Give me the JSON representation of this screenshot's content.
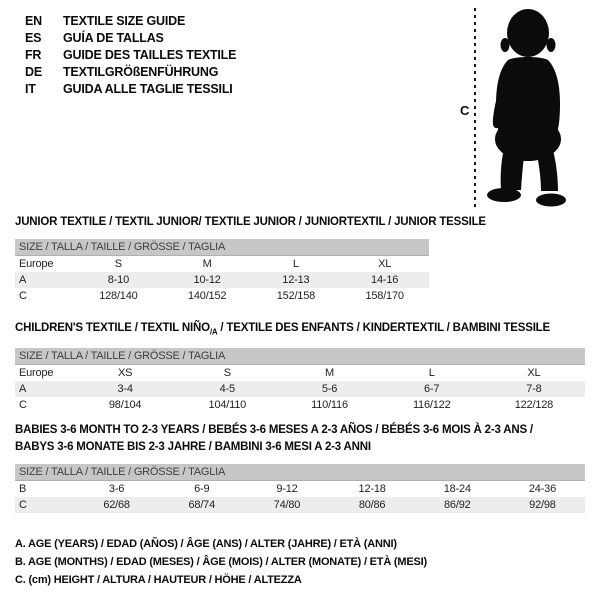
{
  "colors": {
    "header_bar": "#c7c7c7",
    "header_bar_text": "#3f3f3f",
    "alt_row": "#ededed",
    "silhouette": "#0b0b0b"
  },
  "languages": [
    {
      "code": "EN",
      "label": "TEXTILE SIZE GUIDE"
    },
    {
      "code": "ES",
      "label": "GUÍA DE TALLAS"
    },
    {
      "code": "FR",
      "label": "GUIDE DES TAILLES TEXTILE"
    },
    {
      "code": "DE",
      "label": "TEXTILGRÖßENFÜHRUNG"
    },
    {
      "code": "IT",
      "label": "GUIDA ALLE TAGLIE TESSILI"
    }
  ],
  "figure": {
    "height_label": "C"
  },
  "tables": [
    {
      "title": "JUNIOR TEXTILE / TEXTIL JUNIOR/ TEXTILE JUNIOR / JUNIORTEXTIL / JUNIOR TESSILE",
      "size_header": "SIZE / TALLA / TAILLE / GRÖSSE / TAGLIA",
      "rows": [
        {
          "label": "Europe",
          "values": [
            "S",
            "M",
            "L",
            "XL"
          ],
          "alt": false
        },
        {
          "label": "A",
          "values": [
            "8-10",
            "10-12",
            "12-13",
            "14-16"
          ],
          "alt": true
        },
        {
          "label": "C",
          "values": [
            "128/140",
            "140/152",
            "152/158",
            "158/170"
          ],
          "alt": false
        }
      ]
    },
    {
      "title_pre": "CHILDREN'S TEXTILE / TEXTIL NIÑO",
      "title_sub": "/A",
      "title_post": " / TEXTILE DES ENFANTS / KINDERTEXTIL / BAMBINI TESSILE",
      "size_header": "SIZE / TALLA / TAILLE / GRÖSSE / TAGLIA",
      "rows": [
        {
          "label": "Europe",
          "values": [
            "XS",
            "S",
            "M",
            "L",
            "XL"
          ],
          "alt": false
        },
        {
          "label": "A",
          "values": [
            "3-4",
            "4-5",
            "5-6",
            "6-7",
            "7-8"
          ],
          "alt": true
        },
        {
          "label": "C",
          "values": [
            "98/104",
            "104/110",
            "110/116",
            "116/122",
            "122/128"
          ],
          "alt": false
        }
      ]
    },
    {
      "title_line1": "BABIES 3-6 MONTH TO 2-3 YEARS / BEBÉS 3-6 MESES A 2-3 AÑOS / BÉBÉS 3-6 MOIS À 2-3 ANS /",
      "title_line2": "BABYS 3-6 MONATE BIS 2-3 JAHRE / BAMBINI 3-6 MESI A 2-3 ANNI",
      "size_header": "SIZE / TALLA / TAILLE / GRÖSSE / TAGLIA",
      "rows": [
        {
          "label": "B",
          "values": [
            "3-6",
            "6-9",
            "9-12",
            "12-18",
            "18-24",
            "24-36"
          ],
          "alt": false
        },
        {
          "label": "C",
          "values": [
            "62/68",
            "68/74",
            "74/80",
            "80/86",
            "86/92",
            "92/98"
          ],
          "alt": true
        }
      ]
    }
  ],
  "footnotes": [
    "A. AGE (YEARS) / EDAD (AÑOS) / ÂGE (ANS) / ALTER (JAHRE) / ETÀ (ANNI)",
    "B. AGE (MONTHS) / EDAD (MESES) / ÂGE (MOIS) / ALTER (MONATE) / ETÀ (MESI)",
    "C. (cm) HEIGHT / ALTURA / HAUTEUR / HÖHE / ALTEZZA"
  ]
}
